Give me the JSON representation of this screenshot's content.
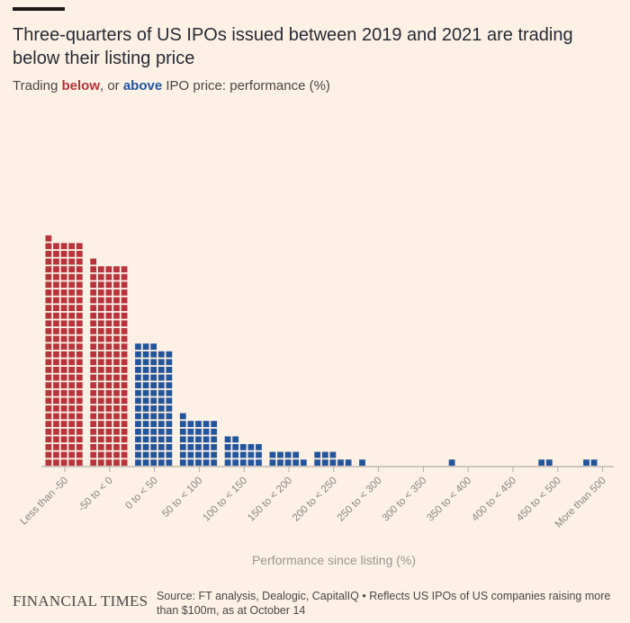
{
  "header": {
    "title": "Three-quarters of US IPOs issued between 2019 and 2021 are trading below their listing price",
    "subtitle_pre": "Trading ",
    "subtitle_below": "below",
    "subtitle_mid": ", or ",
    "subtitle_above": "above",
    "subtitle_post": " IPO price: performance (%)"
  },
  "chart_data": {
    "type": "bar",
    "subtype": "waffle-dot-histogram",
    "xlabel": "Performance since listing (%)",
    "categories": [
      "Less than -50",
      "-50 to < 0",
      "0 to < 50",
      "50 to < 100",
      "100 to < 150",
      "150 to < 200",
      "200 to < 250",
      "250 to < 300",
      "300 to < 350",
      "350 to < 400",
      "400 to < 450",
      "450 to < 500",
      "More than 500"
    ],
    "values": [
      146,
      131,
      78,
      31,
      17,
      9,
      8,
      1,
      0,
      1,
      0,
      2,
      2
    ],
    "squares_per_row": 5,
    "groups": {
      "below": [
        "Less than -50",
        "-50 to < 0"
      ],
      "above": [
        "0 to < 50",
        "50 to < 100",
        "100 to < 150",
        "150 to < 200",
        "200 to < 250",
        "250 to < 300",
        "300 to < 350",
        "350 to < 400",
        "400 to < 450",
        "450 to < 500",
        "More than 500"
      ]
    },
    "colors": {
      "below": "#b8333b",
      "above": "#23559c",
      "axis": "#b3aca6",
      "tick_label": "#8a8480"
    }
  },
  "footer": {
    "logo": "FINANCIAL TIMES",
    "source": "Source: FT analysis, Dealogic, CapitalIQ • Reflects US IPOs of US companies raising more than $100m, as at October 14"
  }
}
